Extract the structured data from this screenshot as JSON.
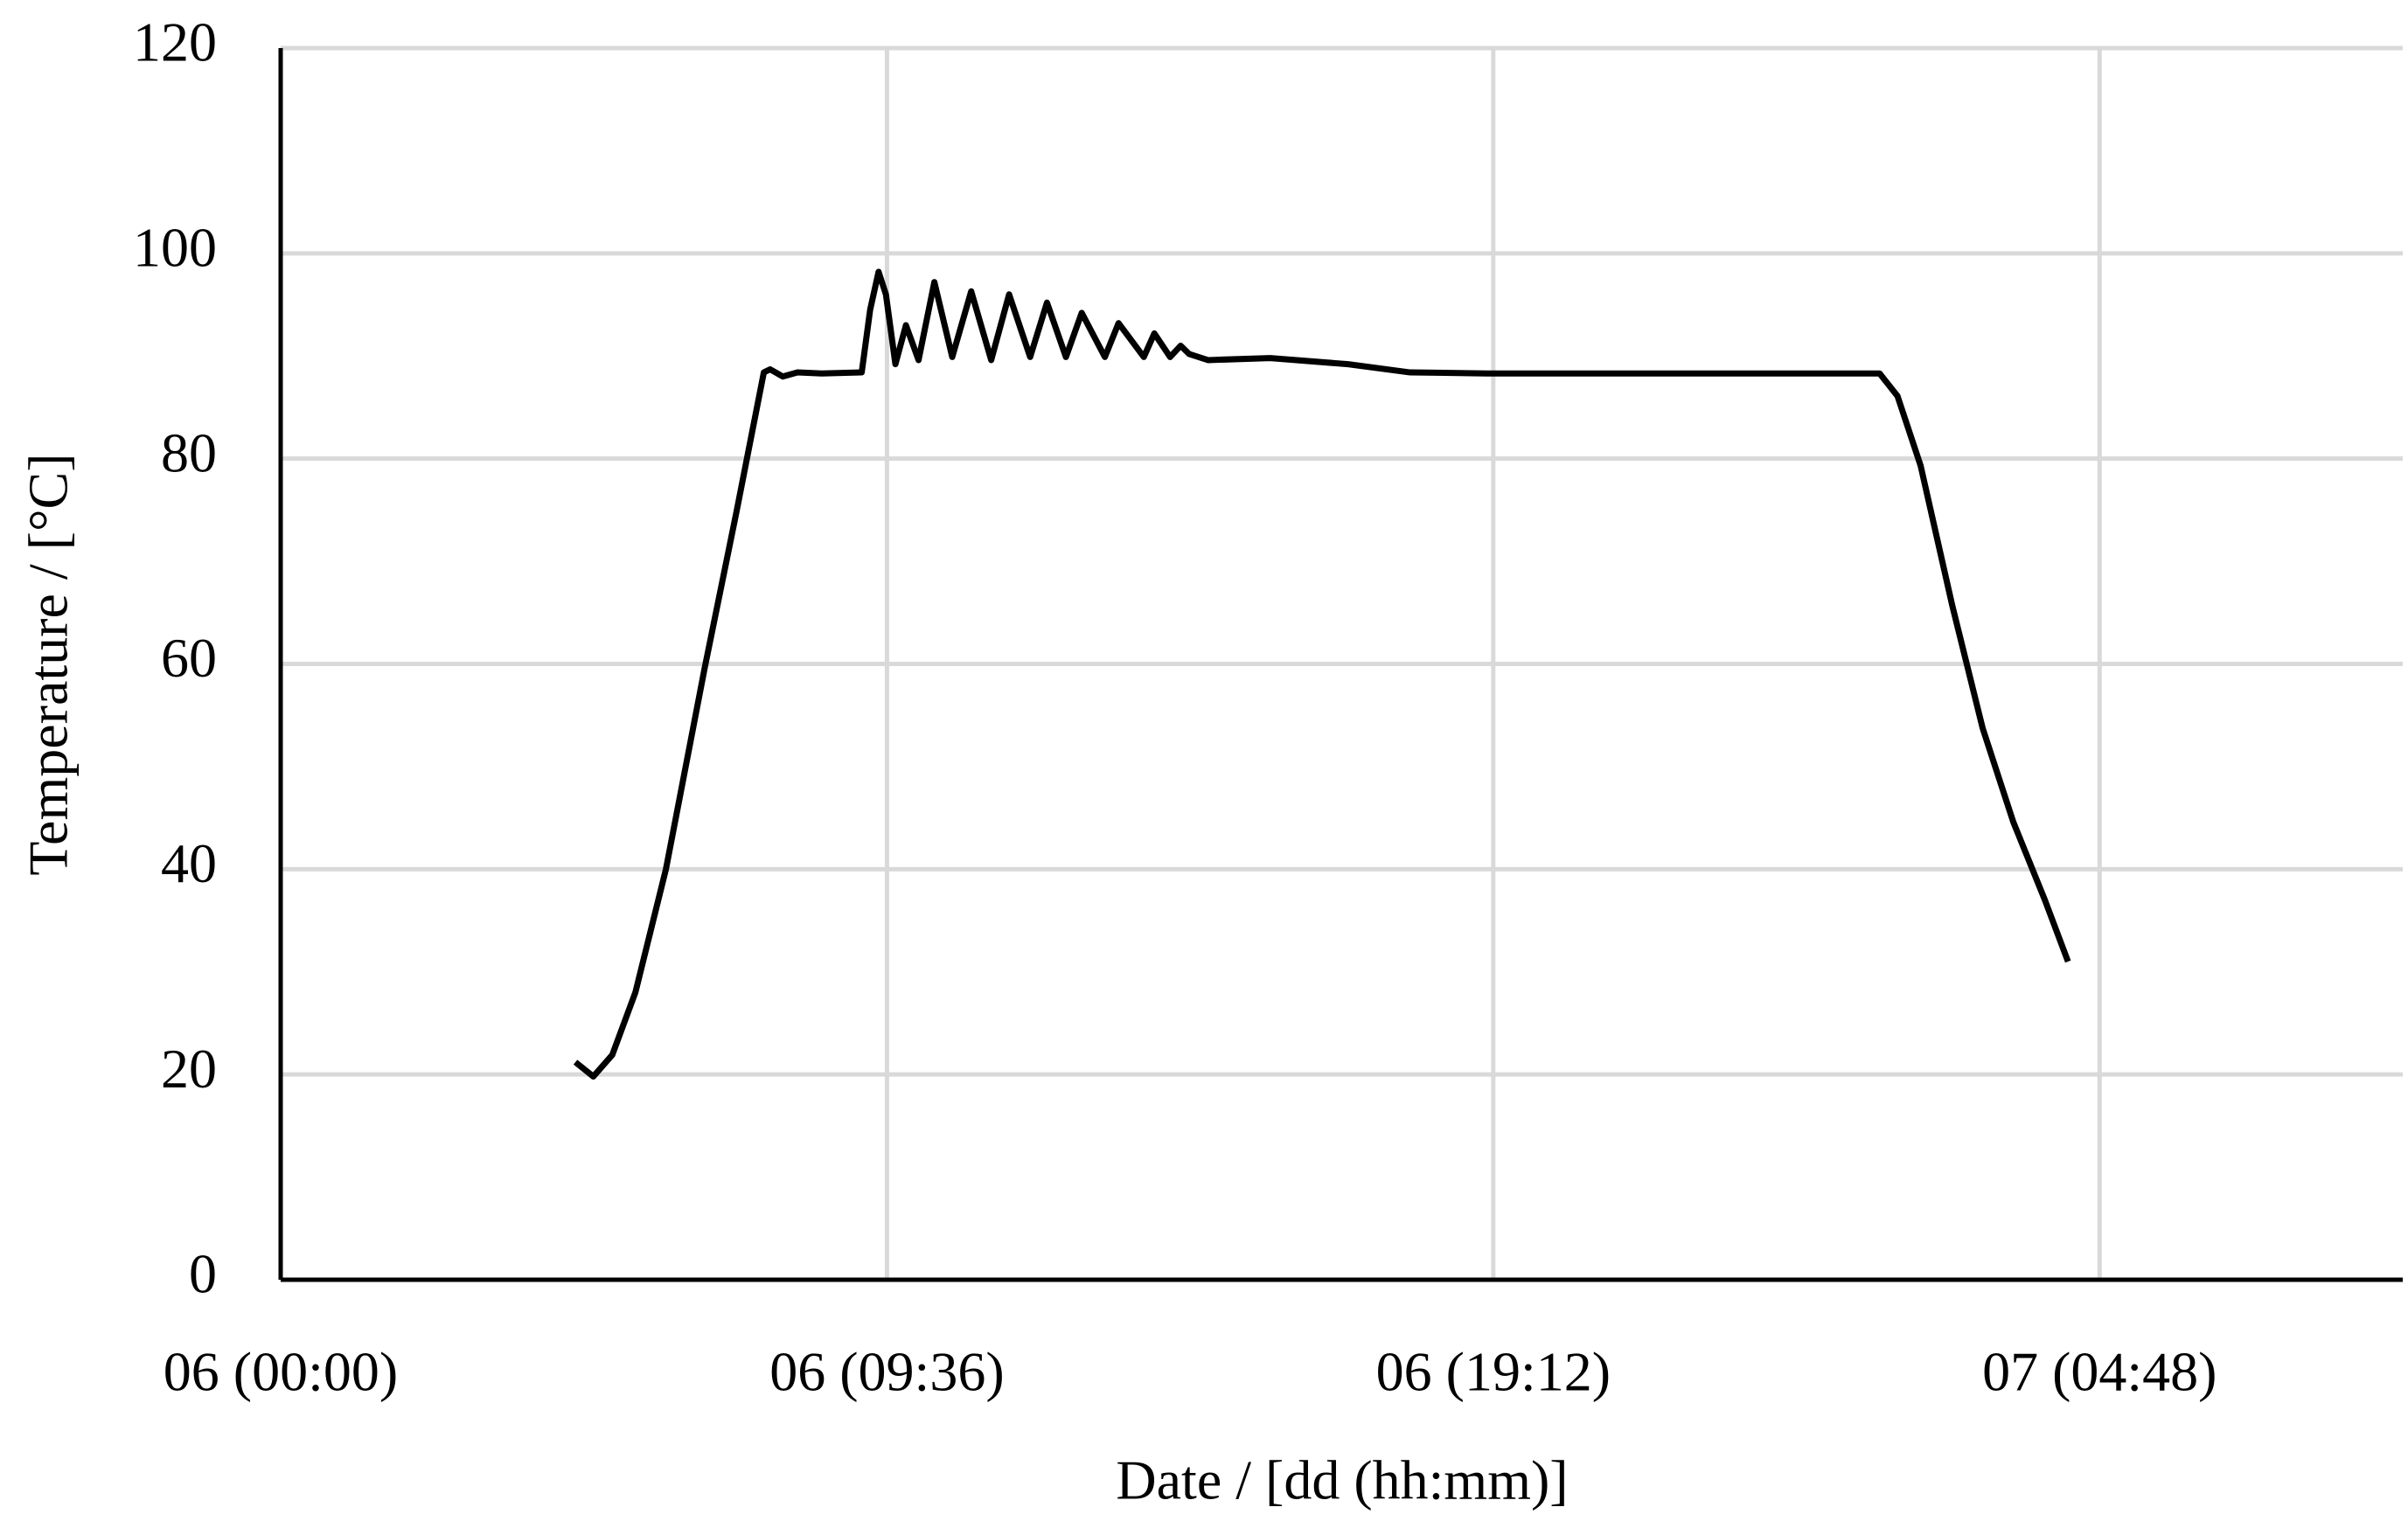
{
  "chart_data": {
    "type": "line",
    "x_label": "Date / [dd (hh:mm)]",
    "y_label": "Temperature / [°C]",
    "x": [
      "06 (04:40)",
      "06 (04:57)",
      "06 (05:15)",
      "06 (05:37)",
      "06 (06:06)",
      "06 (06:43)",
      "06 (07:13)",
      "06 (07:39)",
      "06 (07:45)",
      "06 (07:57)",
      "06 (08:11)",
      "06 (08:34)",
      "06 (09:12)",
      "06 (09:20)",
      "06 (09:28)",
      "06 (09:35)",
      "06 (09:44)",
      "06 (09:54)",
      "06 (10:06)",
      "06 (10:21)",
      "06 (10:38)",
      "06 (10:56)",
      "06 (11:15)",
      "06 (11:32)",
      "06 (11:52)",
      "06 (12:08)",
      "06 (12:26)",
      "06 (12:41)",
      "06 (13:03)",
      "06 (13:16)",
      "06 (13:40)",
      "06 (13:50)",
      "06 (14:05)",
      "06 (14:15)",
      "06 (14:23)",
      "06 (14:41)",
      "06 (15:40)",
      "06 (16:54)",
      "06 (17:53)",
      "06 (19:06)",
      "06 (21:19)",
      "06 (23:46)",
      "07 (01:19)",
      "07 (01:36)",
      "07 (01:58)",
      "07 (02:28)",
      "07 (02:57)",
      "07 (03:26)",
      "07 (03:56)",
      "07 (04:18)"
    ],
    "series": [
      {
        "color": "#000000",
        "values": [
          21.2,
          19.8,
          21.9,
          28,
          40,
          59.7,
          74.8,
          88.4,
          88.7,
          88,
          88.4,
          88.3,
          88.4,
          94.5,
          98.2,
          96,
          89.2,
          93,
          89.6,
          97.2,
          89.9,
          96.3,
          89.6,
          96,
          89.9,
          95.2,
          89.9,
          94.2,
          89.9,
          93.2,
          89.9,
          92.2,
          89.9,
          91,
          90.2,
          89.6,
          89.8,
          89.2,
          88.4,
          88.3,
          88.3,
          88.3,
          88.3,
          86.1,
          79.3,
          65.7,
          53.7,
          44.6,
          37,
          31
        ]
      }
    ],
    "xlim": [
      "06 (00:00)",
      "07 (09:36)"
    ],
    "xticks": [
      "06 (00:00)",
      "06 (09:36)",
      "06 (19:12)",
      "07 (04:48)"
    ],
    "ylim": [
      0,
      120
    ],
    "yticks": [
      0,
      20,
      40,
      60,
      80,
      100,
      120
    ],
    "grid": true
  }
}
